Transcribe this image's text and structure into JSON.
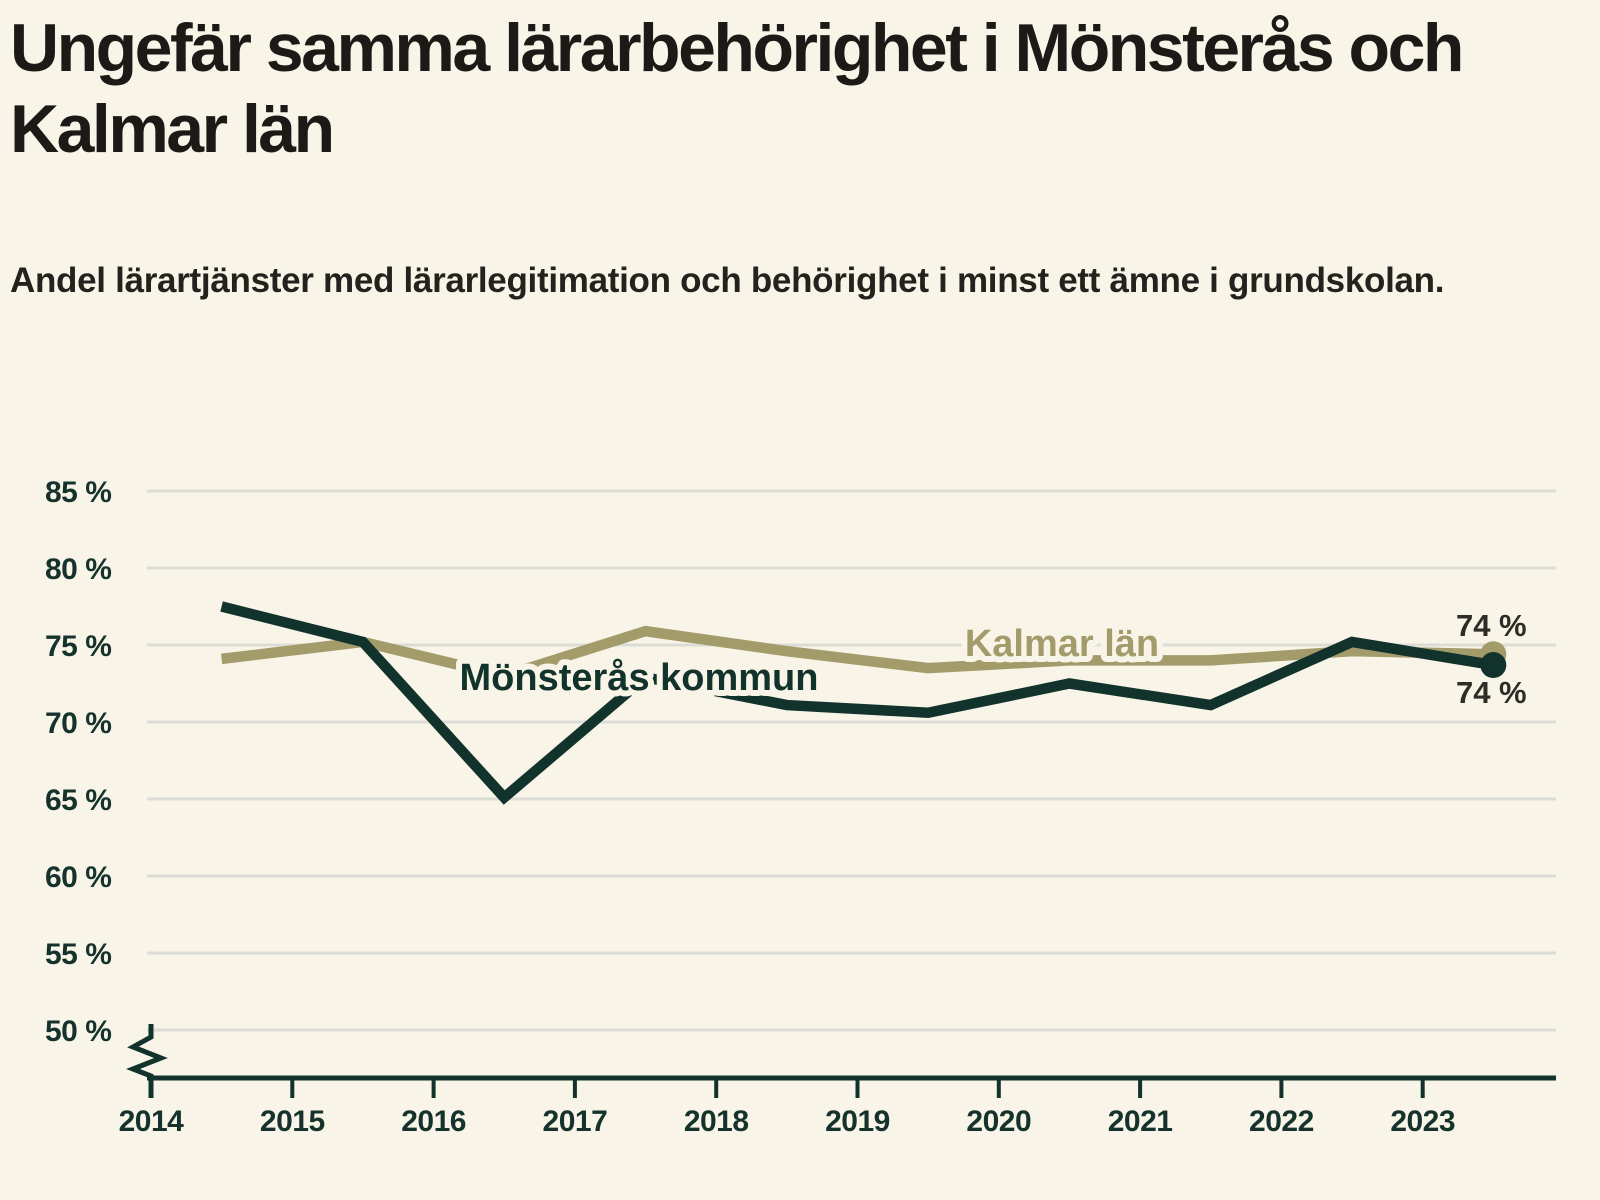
{
  "header": {
    "title": "Ungefär samma lärarbehörighet i Mönsterås och Kalmar län",
    "subtitle": "Andel lärartjänster med lärarlegitimation och behörighet i minst ett ämne i grundskolan."
  },
  "colors": {
    "background": "#f8f4e8",
    "gridline": "#dcdcd6",
    "axis": "#12332c",
    "tick_label": "#15332c",
    "title_text": "#1b1a17",
    "subtitle_text": "#23221e",
    "value_label": "#2e2c27",
    "municipality_line": "#12332c",
    "county_line": "#a49b6b"
  },
  "chart_data": {
    "type": "line",
    "title": "Ungefär samma lärarbehörighet i Mönsterås och Kalmar län",
    "xlabel": "",
    "ylabel": "Andel lärartjänster med lärarlegitimation och behörighet i minst ett ämne i grundskolan (%)",
    "x_tick_labels": [
      "2014",
      "2015",
      "2016",
      "2017",
      "2018",
      "2019",
      "2020",
      "2021",
      "2022",
      "2023"
    ],
    "points_plotted_between_ticks": true,
    "y_ticks": [
      {
        "value": 85,
        "label": "85 %"
      },
      {
        "value": 80,
        "label": "80 %"
      },
      {
        "value": 75,
        "label": "75 %"
      },
      {
        "value": 70,
        "label": "70 %"
      },
      {
        "value": 65,
        "label": "65 %"
      },
      {
        "value": 60,
        "label": "60 %"
      },
      {
        "value": 55,
        "label": "55 %"
      },
      {
        "value": 50,
        "label": "50 %"
      }
    ],
    "ylim": [
      50,
      85
    ],
    "y_axis_break": true,
    "grid": "horizontal",
    "legend": "inline-labels",
    "unit": "%",
    "series": [
      {
        "name": "Mönsterås kommun",
        "color": "#12332c",
        "values": [
          77.5,
          75.2,
          65.1,
          72.9,
          71.1,
          70.6,
          72.5,
          71.1,
          75.2,
          73.7
        ],
        "end_label": "74 %"
      },
      {
        "name": "Kalmar län",
        "color": "#a49b6b",
        "values": [
          74.1,
          75.2,
          73.0,
          75.9,
          74.6,
          73.5,
          74.0,
          74.0,
          74.6,
          74.4
        ],
        "end_label": "74 %"
      }
    ]
  }
}
